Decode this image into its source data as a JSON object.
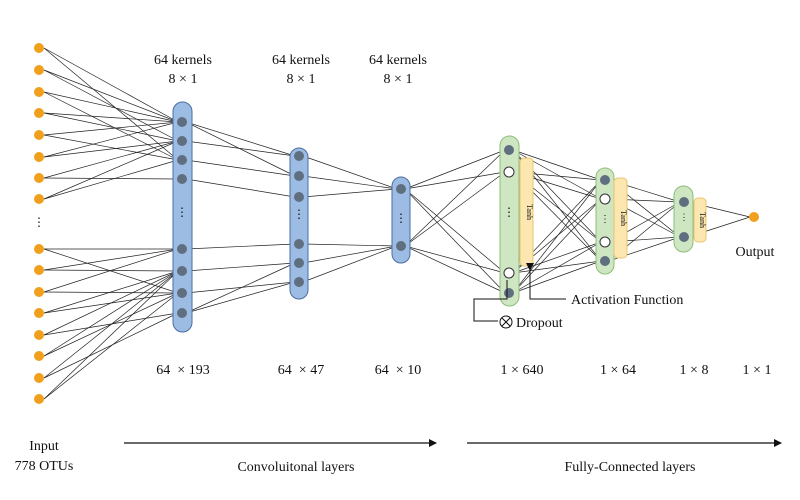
{
  "colors": {
    "input_node": "#F0A01C",
    "conv_bar_fill": "#9DBCE3",
    "conv_bar_stroke": "#4A6FA5",
    "fc_bar_fill": "#CFE6C3",
    "fc_bar_stroke": "#8DBE78",
    "tanh_fill": "#FCE7B0",
    "tanh_stroke": "#E8C470",
    "node_fill": "#5F6F80",
    "dropout_node_fill": "#FFFFFF",
    "output_node": "#F0A01C",
    "edge": "#222222"
  },
  "kernels": [
    {
      "line1": "64 kernels",
      "line2": "8 × 1"
    },
    {
      "line1": "64 kernels",
      "line2": "8 × 1"
    },
    {
      "line1": "64 kernels",
      "line2": "8 × 1"
    }
  ],
  "dims": [
    "64  × 193",
    "64  × 47",
    "64  × 10",
    "1 × 640",
    "1 × 64",
    "1 × 8",
    "1 × 1"
  ],
  "labels": {
    "input_line1": "Input",
    "input_line2": "778 OTUs",
    "output": "Output",
    "activation_function": "Activation Function",
    "dropout": "Dropout",
    "tanh": "Tanh",
    "conv_section": "Convoluitonal layers",
    "fc_section": "Fully-Connected layers",
    "ellipsis": "⋮"
  }
}
